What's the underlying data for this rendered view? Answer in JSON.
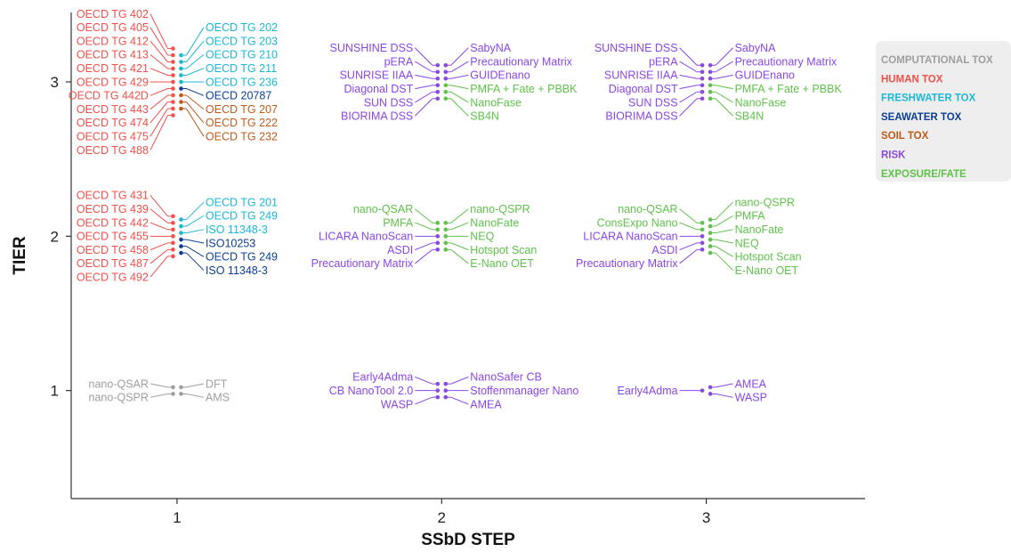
{
  "chart_data": {
    "type": "scatter",
    "title": "",
    "xlabel": "SSbD STEP",
    "ylabel": "TIER",
    "xlim": [
      0.6,
      3.6
    ],
    "ylim": [
      0.3,
      3.45
    ],
    "xticks": [
      "1",
      "2",
      "3"
    ],
    "yticks": [
      "1",
      "2",
      "3"
    ],
    "grid": false,
    "legend_position": "right",
    "categories": [
      {
        "key": "comp",
        "name": "COMPUTATIONAL TOX",
        "color": "#9e9e9e"
      },
      {
        "key": "human",
        "name": "HUMAN TOX",
        "color": "#f0504a"
      },
      {
        "key": "fresh",
        "name": "FRESHWATER TOX",
        "color": "#1ab8d6"
      },
      {
        "key": "sea",
        "name": "SEAWATER TOX",
        "color": "#0d3f96"
      },
      {
        "key": "soil",
        "name": "SOIL TOX",
        "color": "#c05a1a"
      },
      {
        "key": "risk",
        "name": "RISK",
        "color": "#8a47e6"
      },
      {
        "key": "expo",
        "name": "EXPOSURE/FATE",
        "color": "#5fc24a"
      }
    ],
    "groups": [
      {
        "step": 1,
        "tier": 3,
        "left": [
          {
            "t": "OECD TG 402",
            "c": "human"
          },
          {
            "t": "OECD TG 405",
            "c": "human"
          },
          {
            "t": "OECD TG 412",
            "c": "human"
          },
          {
            "t": "OECD TG 413",
            "c": "human"
          },
          {
            "t": "OECD TG 421",
            "c": "human"
          },
          {
            "t": "OECD TG 429",
            "c": "human"
          },
          {
            "t": "OECD TG 442D",
            "c": "human"
          },
          {
            "t": "OECD TG 443",
            "c": "human"
          },
          {
            "t": "OECD TG 474",
            "c": "human"
          },
          {
            "t": "OECD TG 475",
            "c": "human"
          },
          {
            "t": "OECD TG 488",
            "c": "human"
          }
        ],
        "right": [
          {
            "t": "OECD TG 202",
            "c": "fresh"
          },
          {
            "t": "OECD TG 203",
            "c": "fresh"
          },
          {
            "t": "OECD TG 210",
            "c": "fresh"
          },
          {
            "t": "OECD TG 211",
            "c": "fresh"
          },
          {
            "t": "OECD TG 236",
            "c": "fresh"
          },
          {
            "t": "OECD 20787",
            "c": "sea"
          },
          {
            "t": "OECD TG 207",
            "c": "soil"
          },
          {
            "t": "OECD TG 222",
            "c": "soil"
          },
          {
            "t": "OECD TG 232",
            "c": "soil"
          }
        ]
      },
      {
        "step": 1,
        "tier": 2,
        "left": [
          {
            "t": "OECD TG 431",
            "c": "human"
          },
          {
            "t": "OECD TG 439",
            "c": "human"
          },
          {
            "t": "OECD TG 442",
            "c": "human"
          },
          {
            "t": "OECD TG 455",
            "c": "human"
          },
          {
            "t": "OECD TG 458",
            "c": "human"
          },
          {
            "t": "OECD TG 487",
            "c": "human"
          },
          {
            "t": "OECD TG 492",
            "c": "human"
          }
        ],
        "right": [
          {
            "t": "OECD TG 201",
            "c": "fresh"
          },
          {
            "t": "OECD TG 249",
            "c": "fresh"
          },
          {
            "t": "ISO 11348-3",
            "c": "fresh"
          },
          {
            "t": "ISO10253",
            "c": "sea"
          },
          {
            "t": "OECD TG 249",
            "c": "sea"
          },
          {
            "t": "ISO 11348-3",
            "c": "sea"
          }
        ]
      },
      {
        "step": 1,
        "tier": 1,
        "left": [
          {
            "t": "nano-QSAR",
            "c": "comp"
          },
          {
            "t": "nano-QSPR",
            "c": "comp"
          }
        ],
        "right": [
          {
            "t": "DFT",
            "c": "comp"
          },
          {
            "t": "AMS",
            "c": "comp"
          }
        ]
      },
      {
        "step": 2,
        "tier": 3,
        "left": [
          {
            "t": "SUNSHINE DSS",
            "c": "risk"
          },
          {
            "t": "pERA",
            "c": "risk"
          },
          {
            "t": "SUNRISE IIAA",
            "c": "risk"
          },
          {
            "t": "Diagonal DST",
            "c": "risk"
          },
          {
            "t": "SUN DSS",
            "c": "risk"
          },
          {
            "t": "BIORIMA DSS",
            "c": "risk"
          }
        ],
        "right": [
          {
            "t": "SabyNA",
            "c": "risk"
          },
          {
            "t": "Precautionary Matrix",
            "c": "risk"
          },
          {
            "t": "GUIDEnano",
            "c": "risk"
          },
          {
            "t": "PMFA + Fate + PBBK",
            "c": "expo"
          },
          {
            "t": "NanoFase",
            "c": "expo"
          },
          {
            "t": "SB4N",
            "c": "expo"
          }
        ]
      },
      {
        "step": 2,
        "tier": 2,
        "left": [
          {
            "t": "nano-QSAR",
            "c": "expo"
          },
          {
            "t": "PMFA",
            "c": "expo"
          },
          {
            "t": "LICARA NanoScan",
            "c": "risk"
          },
          {
            "t": "ASDI",
            "c": "risk"
          },
          {
            "t": "Precautionary Matrix",
            "c": "risk"
          }
        ],
        "right": [
          {
            "t": "nano-QSPR",
            "c": "expo"
          },
          {
            "t": "NanoFate",
            "c": "expo"
          },
          {
            "t": "NEQ",
            "c": "expo"
          },
          {
            "t": "Hotspot Scan",
            "c": "expo"
          },
          {
            "t": "E-Nano OET",
            "c": "expo"
          }
        ]
      },
      {
        "step": 2,
        "tier": 1,
        "left": [
          {
            "t": "Early4Adma",
            "c": "risk"
          },
          {
            "t": "CB NanoTool 2.0",
            "c": "risk"
          },
          {
            "t": "WASP",
            "c": "risk"
          }
        ],
        "right": [
          {
            "t": "NanoSafer CB",
            "c": "risk"
          },
          {
            "t": "Stoffenmanager Nano",
            "c": "risk"
          },
          {
            "t": "AMEA",
            "c": "risk"
          }
        ]
      },
      {
        "step": 3,
        "tier": 3,
        "left": [
          {
            "t": "SUNSHINE DSS",
            "c": "risk"
          },
          {
            "t": "pERA",
            "c": "risk"
          },
          {
            "t": "SUNRISE IIAA",
            "c": "risk"
          },
          {
            "t": "Diagonal DST",
            "c": "risk"
          },
          {
            "t": "SUN DSS",
            "c": "risk"
          },
          {
            "t": "BIORIMA DSS",
            "c": "risk"
          }
        ],
        "right": [
          {
            "t": "SabyNA",
            "c": "risk"
          },
          {
            "t": "Precautionary Matrix",
            "c": "risk"
          },
          {
            "t": "GUIDEnano",
            "c": "risk"
          },
          {
            "t": "PMFA + Fate + PBBK",
            "c": "expo"
          },
          {
            "t": "NanoFase",
            "c": "expo"
          },
          {
            "t": "SB4N",
            "c": "expo"
          }
        ]
      },
      {
        "step": 3,
        "tier": 2,
        "left": [
          {
            "t": "nano-QSAR",
            "c": "expo"
          },
          {
            "t": "ConsExpo Nano",
            "c": "expo"
          },
          {
            "t": "LICARA NanoScan",
            "c": "risk"
          },
          {
            "t": "ASDI",
            "c": "risk"
          },
          {
            "t": "Precautionary Matrix",
            "c": "risk"
          }
        ],
        "right": [
          {
            "t": "nano-QSPR",
            "c": "expo"
          },
          {
            "t": "PMFA",
            "c": "expo"
          },
          {
            "t": "NanoFate",
            "c": "expo"
          },
          {
            "t": "NEQ",
            "c": "expo"
          },
          {
            "t": "Hotspot Scan",
            "c": "expo"
          },
          {
            "t": "E-Nano OET",
            "c": "expo"
          }
        ]
      },
      {
        "step": 3,
        "tier": 1,
        "left": [
          {
            "t": "Early4Adma",
            "c": "risk"
          }
        ],
        "right": [
          {
            "t": "AMEA",
            "c": "risk"
          },
          {
            "t": "WASP",
            "c": "risk"
          }
        ]
      }
    ]
  }
}
